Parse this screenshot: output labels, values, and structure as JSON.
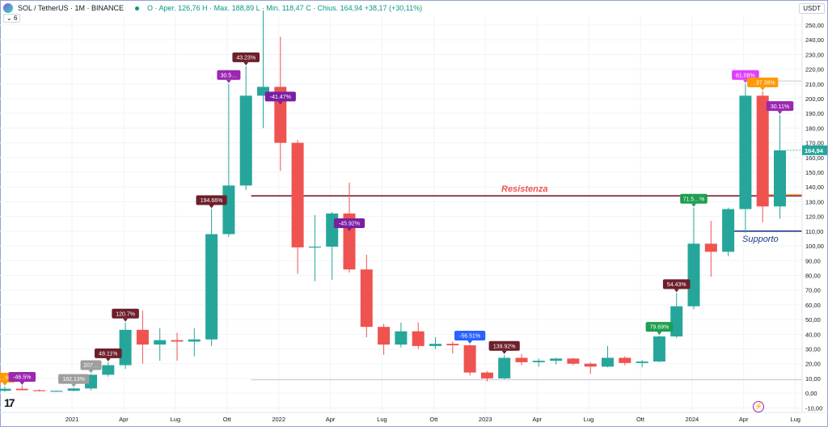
{
  "header": {
    "symbol": "SOL / TetherUS · 1M · BINANCE",
    "ohlc": "O · Aper. 126,76  H · Max. 188,89  L · Min. 118,47  C · Chius. 164,94  +38,17 (+30,11%)",
    "indicators_badge": "6",
    "currency": "USDT"
  },
  "chart_data": {
    "type": "candlestick",
    "title": "SOL / TetherUS · 1M · BINANCE",
    "x_axis_labels": [
      "2021",
      "Apr",
      "Lug",
      "Ott",
      "2022",
      "Apr",
      "Lug",
      "Ott",
      "2023",
      "Apr",
      "Lug",
      "Ott",
      "2024",
      "Apr",
      "Lug"
    ],
    "y_ticks": [
      "250,00",
      "240,00",
      "230,00",
      "220,00",
      "210,00",
      "200,00",
      "190,00",
      "180,00",
      "170,00",
      "160,00",
      "150,00",
      "140,00",
      "130,00",
      "120,00",
      "110,00",
      "100,00",
      "90,00",
      "80,00",
      "70,00",
      "60,00",
      "50,00",
      "40,00",
      "30,00",
      "20,00",
      "10,00",
      "0,00",
      "-10,00"
    ],
    "ylim": [
      -12,
      256
    ],
    "last_price": "164,94",
    "colors": {
      "up": "#26a69a",
      "down": "#ef5350",
      "resistance": "#7b1f2e",
      "support": "#1e3a8a"
    },
    "candles": [
      {
        "o": 1.6,
        "h": 4.5,
        "l": 1.0,
        "c": 3.0
      },
      {
        "o": 3.0,
        "h": 5.0,
        "l": 2.0,
        "c": 2.0
      },
      {
        "o": 2.0,
        "h": 2.5,
        "l": 1.2,
        "c": 1.5
      },
      {
        "o": 1.5,
        "h": 1.8,
        "l": 1.2,
        "c": 1.6
      },
      {
        "o": 1.6,
        "h": 3.6,
        "l": 1.3,
        "c": 3.2
      },
      {
        "o": 3.2,
        "h": 13.0,
        "l": 1.9,
        "c": 12.5
      },
      {
        "o": 12.5,
        "h": 21.0,
        "l": 11.2,
        "c": 19.0
      },
      {
        "o": 19.0,
        "h": 48.0,
        "l": 16.5,
        "c": 43.0
      },
      {
        "o": 43.0,
        "h": 56.0,
        "l": 20.0,
        "c": 33.0
      },
      {
        "o": 33.0,
        "h": 44.0,
        "l": 22.0,
        "c": 36.0
      },
      {
        "o": 36.0,
        "h": 41.0,
        "l": 22.0,
        "c": 35.0
      },
      {
        "o": 35.0,
        "h": 44.0,
        "l": 25.0,
        "c": 36.5
      },
      {
        "o": 36.5,
        "h": 125.0,
        "l": 32.0,
        "c": 108.0
      },
      {
        "o": 108.0,
        "h": 210.0,
        "l": 106.0,
        "c": 141.0
      },
      {
        "o": 141.0,
        "h": 222.0,
        "l": 138.0,
        "c": 202.0
      },
      {
        "o": 202.0,
        "h": 260.0,
        "l": 180.0,
        "c": 208.0
      },
      {
        "o": 208.0,
        "h": 242.0,
        "l": 151.0,
        "c": 170.0
      },
      {
        "o": 170.0,
        "h": 172.0,
        "l": 81.0,
        "c": 99.0
      },
      {
        "o": 99.0,
        "h": 121.0,
        "l": 76.0,
        "c": 99.5
      },
      {
        "o": 99.5,
        "h": 123.0,
        "l": 77.0,
        "c": 122.0
      },
      {
        "o": 122.0,
        "h": 143.0,
        "l": 82.0,
        "c": 84.0
      },
      {
        "o": 84.0,
        "h": 94.0,
        "l": 38.0,
        "c": 45.0
      },
      {
        "o": 45.0,
        "h": 47.0,
        "l": 26.0,
        "c": 33.0
      },
      {
        "o": 33.0,
        "h": 48.0,
        "l": 31.0,
        "c": 42.0
      },
      {
        "o": 42.0,
        "h": 48.0,
        "l": 30.0,
        "c": 32.0
      },
      {
        "o": 32.0,
        "h": 38.0,
        "l": 30.0,
        "c": 33.5
      },
      {
        "o": 33.5,
        "h": 35.0,
        "l": 27.0,
        "c": 32.5
      },
      {
        "o": 32.5,
        "h": 33.0,
        "l": 12.0,
        "c": 14.0
      },
      {
        "o": 14.0,
        "h": 15.0,
        "l": 8.0,
        "c": 10.0
      },
      {
        "o": 10.0,
        "h": 26.0,
        "l": 9.5,
        "c": 24.0
      },
      {
        "o": 24.0,
        "h": 26.5,
        "l": 19.0,
        "c": 21.0
      },
      {
        "o": 21.0,
        "h": 23.5,
        "l": 18.0,
        "c": 22.0
      },
      {
        "o": 22.0,
        "h": 24.0,
        "l": 19.5,
        "c": 23.5
      },
      {
        "o": 23.5,
        "h": 24.0,
        "l": 19.0,
        "c": 20.0
      },
      {
        "o": 20.0,
        "h": 21.0,
        "l": 13.0,
        "c": 18.0
      },
      {
        "o": 18.0,
        "h": 32.0,
        "l": 17.5,
        "c": 24.0
      },
      {
        "o": 24.0,
        "h": 25.0,
        "l": 19.0,
        "c": 20.5
      },
      {
        "o": 20.5,
        "h": 22.5,
        "l": 17.5,
        "c": 21.5
      },
      {
        "o": 21.5,
        "h": 39.0,
        "l": 21.0,
        "c": 38.5
      },
      {
        "o": 38.5,
        "h": 68.0,
        "l": 37.5,
        "c": 59.0
      },
      {
        "o": 59.0,
        "h": 126.0,
        "l": 57.0,
        "c": 101.5
      },
      {
        "o": 101.5,
        "h": 117.0,
        "l": 79.0,
        "c": 96.0
      },
      {
        "o": 96.0,
        "h": 126.0,
        "l": 93.0,
        "c": 125.0
      },
      {
        "o": 125.0,
        "h": 210.0,
        "l": 109.0,
        "c": 202.0
      },
      {
        "o": 202.0,
        "h": 205.0,
        "l": 116.0,
        "c": 126.8
      },
      {
        "o": 126.8,
        "h": 188.9,
        "l": 118.5,
        "c": 164.9
      }
    ],
    "annotations": [
      {
        "i": 0,
        "text": "…%",
        "anchor": "high",
        "color": "#ff9800"
      },
      {
        "i": 1,
        "text": "-46.5%",
        "anchor": "high",
        "color": "#9c27b0"
      },
      {
        "i": 4,
        "text": "182.13%",
        "anchor": "high",
        "color": "#9e9e9e"
      },
      {
        "i": 5,
        "text": "207…",
        "anchor": "high",
        "color": "#9e9e9e"
      },
      {
        "i": 6,
        "text": "48.11%",
        "anchor": "high",
        "color": "#6d1f2a"
      },
      {
        "i": 7,
        "text": "120.7%",
        "anchor": "high",
        "color": "#6d1f2a"
      },
      {
        "i": 12,
        "text": "194.66%",
        "anchor": "high",
        "color": "#6d1f2a"
      },
      {
        "i": 13,
        "text": "30.5…",
        "anchor": "high",
        "color": "#9c27b0"
      },
      {
        "i": 14,
        "text": "43.23%",
        "anchor": "high",
        "color": "#6d1f2a"
      },
      {
        "i": 16,
        "text": "-41.47%",
        "anchor": "low",
        "color": "#7b1fa2"
      },
      {
        "i": 20,
        "text": "-45.92%",
        "anchor": "low",
        "color": "#7b1fa2"
      },
      {
        "i": 27,
        "text": "-56.51%",
        "anchor": "high",
        "color": "#2962ff"
      },
      {
        "i": 29,
        "text": "139.92%",
        "anchor": "high",
        "color": "#6d1f2a"
      },
      {
        "i": 38,
        "text": "79.69%",
        "anchor": "high",
        "color": "#1e9e50"
      },
      {
        "i": 39,
        "text": "54.43%",
        "anchor": "high",
        "color": "#6d1f2a"
      },
      {
        "i": 40,
        "text": "71.5…%",
        "anchor": "high",
        "color": "#1e9e50"
      },
      {
        "i": 43,
        "text": "61.08%",
        "anchor": "high",
        "color": "#e040fb"
      },
      {
        "i": 44,
        "text": "…37.38%",
        "anchor": "high",
        "color": "#ff9800"
      },
      {
        "i": 45,
        "text": "30.11%",
        "anchor": "high",
        "color": "#9c27b0"
      }
    ],
    "levels": [
      {
        "name": "Resistenza",
        "value": 134,
        "color": "#7b1f2e"
      },
      {
        "name": "Supporto",
        "value": 110,
        "color": "#1e3a8a"
      }
    ]
  }
}
